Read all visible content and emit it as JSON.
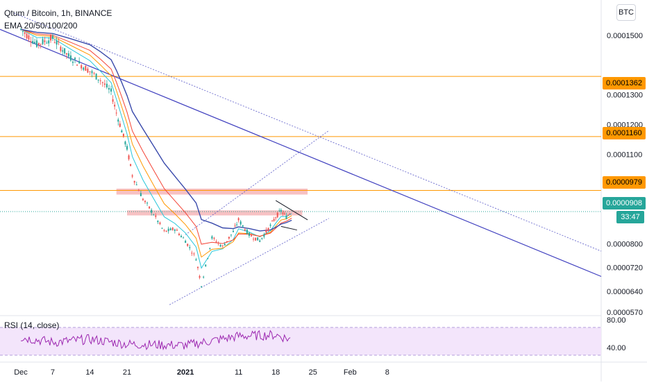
{
  "header": {
    "symbol_title": "Qtum / Bitcoin, 1h, BINANCE",
    "indicator": "EMA 20/50/100/200",
    "currency_button": "BTC"
  },
  "rsi_panel": {
    "label": "RSI (14, close)",
    "levels": [
      "80.00",
      "40.00"
    ]
  },
  "price_axis": {
    "ticks": [
      "0.0001500",
      "0.0001300",
      "0.0001200",
      "0.0001100",
      "0.0000800",
      "0.0000720",
      "0.0000640",
      "0.0000570"
    ]
  },
  "price_badges": [
    {
      "value": "0.0001362",
      "bg": "#ff9800",
      "fg": "#000000"
    },
    {
      "value": "0.0001160",
      "bg": "#ff9800",
      "fg": "#000000"
    },
    {
      "value": "0.0000979",
      "bg": "#ff9800",
      "fg": "#000000"
    },
    {
      "value": "0.0000908",
      "bg": "#26a69a",
      "fg": "#ffffff"
    },
    {
      "value": "33:47",
      "bg": "#26a69a",
      "fg": "#ffffff"
    }
  ],
  "time_axis": {
    "ticks": [
      "Dec",
      "7",
      "14",
      "21",
      "2021",
      "11",
      "18",
      "25",
      "Feb",
      "8"
    ]
  },
  "colors": {
    "horizontal_levels": "#ff9800",
    "trend_lines": "#3f3fbf",
    "zone": "#f4a7aa",
    "rsi_line": "#9c27b0",
    "rsi_band": "#f3e5fb",
    "ema20": "#26c6da",
    "ema50": "#ff9800",
    "ema100": "#f44336",
    "ema200": "#3949ab"
  },
  "chart_data": [
    {
      "type": "line",
      "title": "Qtum / Bitcoin, 1h, BINANCE",
      "x": [
        "Dec 1",
        "Dec 4",
        "Dec 7",
        "Dec 10",
        "Dec 14",
        "Dec 16",
        "Dec 18",
        "Dec 19",
        "Dec 20",
        "Dec 21",
        "Dec 22",
        "Dec 24",
        "Dec 26",
        "Dec 28",
        "Dec 30",
        "Jan 1",
        "Jan 3",
        "Jan 4",
        "Jan 6",
        "Jan 8",
        "Jan 10",
        "Jan 11",
        "Jan 13",
        "Jan 15",
        "Jan 17",
        "Jan 18",
        "Jan 19",
        "Jan 20",
        "Jan 21"
      ],
      "series": [
        {
          "name": "Qtum / Bitcoin",
          "values": [
            0.000152,
            0.000147,
            0.000149,
            0.000143,
            0.000138,
            0.000135,
            0.000131,
            0.000124,
            0.000118,
            0.000112,
            0.000103,
            9.5e-05,
            9e-05,
            8.4e-05,
            8.5e-05,
            8.1e-05,
            7.5e-05,
            6.6e-05,
            8.2e-05,
            7.9e-05,
            8.4e-05,
            8.8e-05,
            8.3e-05,
            8.1e-05,
            8.6e-05,
            8.9e-05,
            9.1e-05,
            8.9e-05,
            9.1e-05
          ]
        }
      ],
      "horizontal_levels": [
        0.0001362,
        0.000116,
        9.79e-05
      ],
      "last_price": 9.08e-05,
      "ylim": [
        5.7e-05,
        0.00016
      ],
      "grid": false
    },
    {
      "type": "line",
      "title": "RSI (14, close)",
      "x": [
        "Dec 1",
        "Dec 7",
        "Dec 14",
        "Dec 21",
        "Jan 1",
        "Jan 11",
        "Jan 18",
        "Jan 21"
      ],
      "series": [
        {
          "name": "RSI (14, close)",
          "values": [
            58,
            50,
            55,
            47,
            45,
            60,
            62,
            54
          ]
        }
      ],
      "ylim": [
        20,
        90
      ],
      "grid": false
    }
  ]
}
